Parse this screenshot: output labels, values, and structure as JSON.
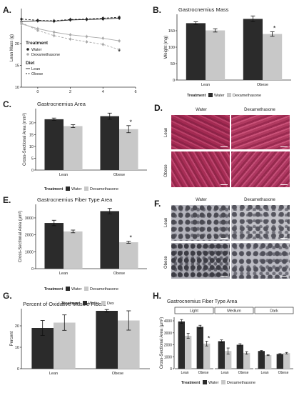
{
  "panels": {
    "A": {
      "label": "A.",
      "ylabel": "Lean Mass (g)",
      "yticks": [
        "20",
        "15",
        "10"
      ],
      "xticks": [
        "0",
        "2",
        "4",
        "6"
      ],
      "legend_treatment_title": "Treatment",
      "legend_treatment": [
        "Water",
        "Dexamethasone"
      ],
      "legend_diet_title": "Diet",
      "legend_diet": [
        "Lean",
        "Obese"
      ],
      "star": "*"
    },
    "B": {
      "label": "B.",
      "title": "Gastrocnemius Mass"
    },
    "C": {
      "label": "C.",
      "title": "Gastrocnemius Area"
    },
    "D": {
      "label": "D.",
      "col_labels": [
        "Water",
        "Dexamethasone"
      ],
      "row_labels": [
        "Lean",
        "Obese"
      ]
    },
    "E": {
      "label": "E.",
      "title": "Gastrocnemius Fiber Type Area"
    },
    "F": {
      "label": "F.",
      "col_labels": [
        "Water",
        "Dexamethasone"
      ],
      "row_labels": [
        "Lean",
        "Obese"
      ]
    },
    "G": {
      "label": "G.",
      "title": "Percent of Oxidative Muscle Fibers"
    },
    "H": {
      "label": "H.",
      "title": "Gastrocnemius Fiber Type Area"
    }
  },
  "chart_data": [
    {
      "id": "A",
      "type": "line",
      "title": "",
      "xlabel": "",
      "ylabel": "Lean Mass (g)",
      "ylim": [
        10,
        28
      ],
      "xlim": [
        -1,
        6
      ],
      "x": [
        -1,
        0,
        1,
        2,
        3,
        4,
        5
      ],
      "series": [
        {
          "name": "Water / Lean",
          "values": [
            25.0,
            25.2,
            25.1,
            25.4,
            25.5,
            25.6,
            25.8
          ]
        },
        {
          "name": "Water / Obese",
          "values": [
            25.6,
            25.3,
            25.2,
            25.5,
            25.6,
            25.8,
            26.0
          ]
        },
        {
          "name": "Dexamethasone / Lean",
          "values": [
            24.5,
            23.4,
            22.6,
            22.0,
            21.6,
            21.2,
            20.6
          ]
        },
        {
          "name": "Dexamethasone / Obese",
          "values": [
            24.8,
            23.0,
            21.8,
            21.0,
            20.4,
            19.8,
            18.6
          ]
        }
      ],
      "legend": "right",
      "significance": "*"
    },
    {
      "id": "B",
      "type": "bar",
      "title": "Gastrocnemius Mass",
      "xlabel": "",
      "ylabel": "Weight (mg)",
      "ylim": [
        0,
        200
      ],
      "yticks": [
        0,
        50,
        100,
        150
      ],
      "categories": [
        "Lean",
        "Obese"
      ],
      "series": [
        {
          "name": "Water",
          "color": "#2b2b2b",
          "values": [
            173,
            186
          ],
          "errors": [
            4,
            9
          ]
        },
        {
          "name": "Dexamethasone",
          "color": "#c8c8c8",
          "values": [
            151,
            140
          ],
          "errors": [
            5,
            7
          ]
        }
      ],
      "legend_title": "Treatment",
      "legend": "bottom",
      "annotations": [
        "*"
      ]
    },
    {
      "id": "C",
      "type": "bar",
      "title": "Gastrocnemius Area",
      "xlabel": "",
      "ylabel": "Cross-Sectional Area (mm²)",
      "ylim": [
        0,
        26
      ],
      "yticks": [
        0,
        5,
        10,
        15,
        20
      ],
      "categories": [
        "Lean",
        "Obese"
      ],
      "series": [
        {
          "name": "Water",
          "color": "#2b2b2b",
          "values": [
            21.5,
            22.8
          ],
          "errors": [
            0.5,
            1.3
          ]
        },
        {
          "name": "Dexamethasone",
          "color": "#c8c8c8",
          "values": [
            18.6,
            17.3
          ],
          "errors": [
            0.6,
            1.5
          ]
        }
      ],
      "legend_title": "Treatment",
      "legend": "bottom",
      "annotations": [
        "*"
      ]
    },
    {
      "id": "E",
      "type": "bar",
      "title": "Gastrocnemius Fiber Type Area",
      "xlabel": "",
      "ylabel": "Cross-Sectional Area (µm²)",
      "ylim": [
        0,
        3800
      ],
      "yticks": [
        0,
        1000,
        2000,
        3000
      ],
      "categories": [
        "Lean",
        "Obese"
      ],
      "series": [
        {
          "name": "Water",
          "color": "#2b2b2b",
          "values": [
            2700,
            3400
          ],
          "errors": [
            160,
            160
          ]
        },
        {
          "name": "Dexamethasone",
          "color": "#c8c8c8",
          "values": [
            2200,
            1560
          ],
          "errors": [
            80,
            60
          ]
        }
      ],
      "legend_title": "Treatment",
      "legend": "bottom",
      "annotations": [
        "*"
      ]
    },
    {
      "id": "G",
      "type": "bar",
      "title": "Percent of Oxidative Muscle Fibers",
      "xlabel": "",
      "ylabel": "Percent",
      "ylim": [
        0,
        28
      ],
      "yticks": [
        0,
        10,
        20
      ],
      "categories": [
        "Lean",
        "Obese"
      ],
      "series": [
        {
          "name": "Water",
          "color": "#2b2b2b",
          "values": [
            19,
            27
          ],
          "errors": [
            3.5,
            0.6
          ]
        },
        {
          "name": "Dex",
          "color": "#c8c8c8",
          "values": [
            21.5,
            22.5
          ],
          "errors": [
            3.6,
            4.5
          ]
        }
      ],
      "legend_title": "Treatment",
      "legend": "top"
    },
    {
      "id": "H",
      "type": "bar",
      "title": "Gastrocnemius Fiber Type Area",
      "xlabel": "",
      "ylabel": "Cross-Sectional Area (µm²)",
      "ylim": [
        0,
        4300
      ],
      "yticks": [
        0,
        1000,
        2000,
        3000,
        4000
      ],
      "facets": [
        "Light",
        "Medium",
        "Dark"
      ],
      "categories": [
        "Lean",
        "Obese"
      ],
      "series": [
        {
          "name": "Water",
          "color": "#2b2b2b",
          "values": [
            [
              3950,
              3500
            ],
            [
              2300,
              2000
            ],
            [
              1480,
              1230
            ]
          ],
          "errors": [
            [
              160,
              130
            ],
            [
              110,
              90
            ],
            [
              40,
              30
            ]
          ]
        },
        {
          "name": "Dexamethasone",
          "color": "#c8c8c8",
          "values": [
            [
              2750,
              2100
            ],
            [
              1480,
              1320
            ],
            [
              1130,
              1300
            ]
          ],
          "errors": [
            [
              200,
              200
            ],
            [
              250,
              110
            ],
            [
              40,
              60
            ]
          ]
        }
      ],
      "legend_title": "Treatment",
      "legend": "bottom",
      "annotations": [
        "*"
      ]
    }
  ]
}
